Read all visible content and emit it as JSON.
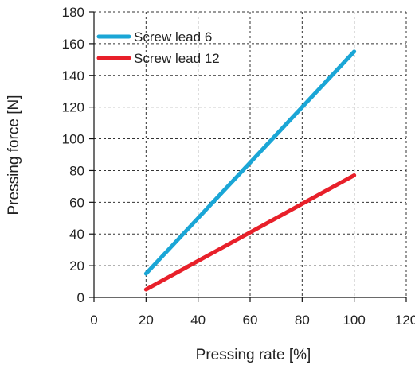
{
  "chart_data": {
    "type": "line",
    "title": "",
    "xlabel": "Pressing rate [%]",
    "ylabel": "Pressing force [N]",
    "xlim": [
      0,
      120
    ],
    "ylim": [
      0,
      180
    ],
    "x_ticks": [
      0,
      20,
      40,
      60,
      80,
      100,
      120
    ],
    "y_ticks": [
      0,
      20,
      40,
      60,
      80,
      100,
      120,
      140,
      160,
      180
    ],
    "grid": true,
    "legend_position": "top-left",
    "series": [
      {
        "name": "Screw lead 6",
        "color": "#1aa6d6",
        "x": [
          20,
          100
        ],
        "y": [
          15,
          155
        ]
      },
      {
        "name": "Screw lead 12",
        "color": "#e8202a",
        "x": [
          20,
          100
        ],
        "y": [
          5,
          77
        ]
      }
    ]
  }
}
